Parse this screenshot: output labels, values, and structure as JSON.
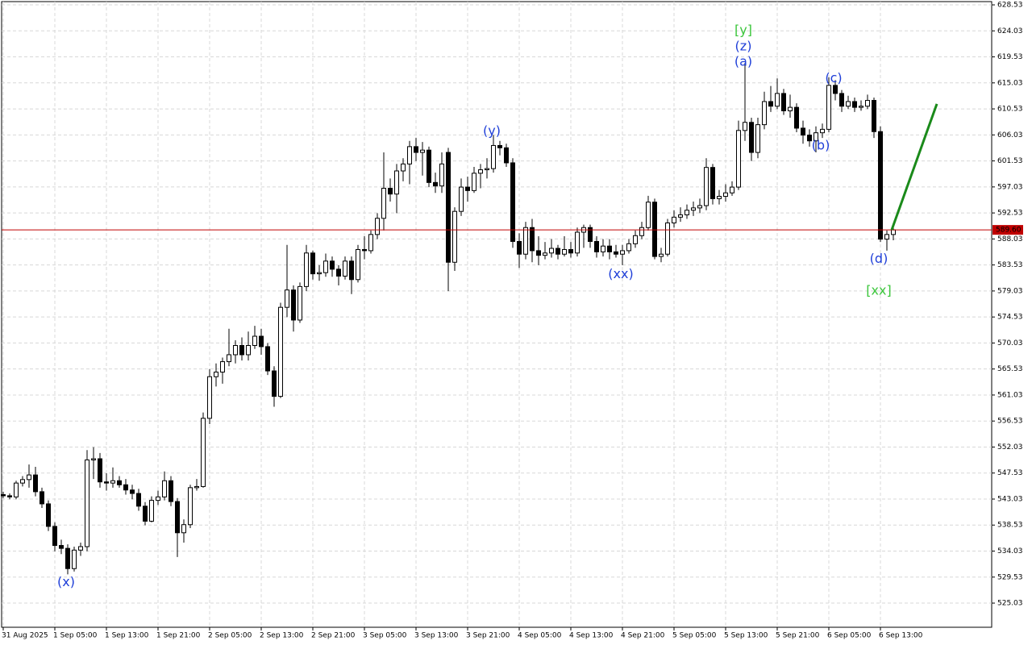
{
  "chart_data": {
    "type": "candlestick",
    "ylim": [
      520.85,
      629.37
    ],
    "yticks": [
      525.03,
      529.53,
      534.03,
      538.53,
      543.03,
      547.53,
      552.03,
      556.53,
      561.03,
      565.53,
      570.03,
      574.53,
      579.03,
      583.53,
      588.03,
      592.53,
      597.03,
      601.53,
      606.03,
      610.53,
      615.03,
      619.53,
      624.03,
      628.53
    ],
    "xlim": [
      -0.5,
      153.25
    ],
    "xticks": [
      {
        "value": 0,
        "label": "31 Aug 2025"
      },
      {
        "value": 8,
        "label": "1 Sep 05:00"
      },
      {
        "value": 16,
        "label": "1 Sep 13:00"
      },
      {
        "value": 24,
        "label": "1 Sep 21:00"
      },
      {
        "value": 32,
        "label": "2 Sep 05:00"
      },
      {
        "value": 40,
        "label": "2 Sep 13:00"
      },
      {
        "value": 48,
        "label": "2 Sep 21:00"
      },
      {
        "value": 56,
        "label": "3 Sep 05:00"
      },
      {
        "value": 64,
        "label": "3 Sep 13:00"
      },
      {
        "value": 72,
        "label": "3 Sep 21:00"
      },
      {
        "value": 80,
        "label": "4 Sep 05:00"
      },
      {
        "value": 88,
        "label": "4 Sep 13:00"
      },
      {
        "value": 96,
        "label": "4 Sep 21:00"
      },
      {
        "value": 104,
        "label": "5 Sep 05:00"
      },
      {
        "value": 112,
        "label": "5 Sep 13:00"
      },
      {
        "value": 120,
        "label": "5 Sep 21:00"
      },
      {
        "value": 128,
        "label": "6 Sep 05:00"
      },
      {
        "value": 136,
        "label": "6 Sep 13:00"
      }
    ],
    "grid": true,
    "up_color": "#ffffff",
    "down_color": "#000000",
    "wick_color": "#000000",
    "open": [
      543.8,
      543.6,
      543.4,
      545.8,
      546.4,
      547.2,
      544.3,
      542.2,
      538.3,
      535.0,
      534.5,
      531.0,
      534.2,
      534.8,
      549.8,
      550.0,
      546.0,
      545.8,
      546.2,
      545.5,
      544.6,
      544.0,
      541.8,
      539.2,
      542.8,
      543.4,
      546.2,
      542.6,
      537.2,
      538.6,
      545.0,
      545.2,
      557.0,
      564.2,
      565.0,
      566.8,
      568.0,
      569.6,
      568.0,
      569.6,
      571.2,
      569.4,
      565.2,
      560.8,
      576.2,
      579.2,
      574.0,
      579.8,
      585.6,
      582.0,
      582.2,
      584.2,
      582.8,
      581.6,
      584.2,
      581.0,
      586.2,
      586.0,
      588.8,
      591.6,
      596.8,
      595.8,
      599.8,
      601.0,
      604.0,
      603.0,
      603.4,
      597.8,
      597.2,
      603.0,
      584.0,
      592.8,
      597.0,
      596.4,
      599.4,
      600.0,
      600.2,
      604.2,
      603.8,
      601.2,
      587.6,
      585.4,
      590.0,
      586.0,
      585.2,
      585.6,
      586.4,
      585.4,
      586.2,
      585.6,
      589.2,
      590.0,
      587.6,
      585.8,
      586.8,
      585.8,
      585.4,
      586.0,
      587.2,
      588.6,
      590.0,
      594.4,
      585.0,
      585.4,
      590.8,
      591.8,
      592.2,
      593.0,
      593.4,
      593.8,
      600.4,
      595.0,
      595.4,
      596.0,
      597.0,
      606.8,
      608.2,
      603.0,
      607.8,
      611.8,
      611.0,
      613.2,
      610.2,
      610.8,
      607.2,
      606.0,
      605.0,
      606.4,
      607.0,
      614.6,
      613.2,
      611.0,
      611.8,
      610.8,
      611.0,
      612.0,
      606.6,
      588.0,
      588.8
    ],
    "high": [
      544.3,
      544.0,
      546.2,
      547.0,
      549.0,
      548.6,
      545.0,
      542.8,
      539.0,
      536.0,
      535.2,
      534.8,
      535.5,
      551.5,
      552.0,
      551.0,
      547.5,
      548.5,
      547.0,
      546.5,
      545.5,
      544.8,
      542.5,
      543.5,
      544.5,
      547.8,
      547.0,
      543.2,
      539.5,
      545.5,
      546.5,
      558.0,
      565.5,
      566.5,
      567.5,
      572.5,
      570.5,
      571.0,
      572.0,
      573.0,
      572.5,
      570.0,
      566.0,
      577.0,
      587.0,
      580.0,
      580.5,
      587.0,
      586.0,
      583.5,
      585.5,
      585.0,
      583.5,
      585.0,
      585.0,
      587.0,
      588.5,
      589.5,
      592.5,
      603.0,
      598.5,
      601.0,
      602.0,
      605.0,
      605.5,
      604.8,
      604.0,
      599.5,
      603.0,
      603.8,
      593.5,
      598.5,
      598.8,
      600.5,
      601.0,
      602.0,
      606.0,
      605.0,
      604.5,
      602.0,
      589.0,
      591.0,
      591.5,
      588.5,
      587.5,
      588.0,
      587.0,
      588.5,
      587.5,
      590.0,
      590.5,
      590.5,
      588.5,
      588.0,
      588.0,
      587.0,
      587.0,
      588.0,
      589.5,
      591.0,
      595.5,
      595.0,
      586.5,
      591.5,
      593.0,
      593.5,
      594.0,
      594.5,
      595.0,
      602.0,
      601.0,
      596.5,
      597.5,
      598.0,
      608.5,
      618.5,
      609.0,
      609.0,
      613.5,
      614.5,
      615.8,
      614.0,
      613.0,
      611.5,
      608.5,
      607.0,
      607.5,
      608.0,
      616.0,
      615.5,
      613.8,
      612.8,
      612.5,
      612.0,
      613.0,
      612.5,
      607.5,
      589.5,
      590.0
    ],
    "low": [
      543.2,
      543.0,
      543.0,
      545.2,
      545.0,
      543.5,
      541.5,
      537.5,
      534.0,
      533.5,
      530.0,
      530.5,
      533.2,
      534.0,
      546.5,
      545.0,
      544.5,
      545.0,
      545.0,
      543.8,
      543.0,
      541.0,
      538.5,
      539.0,
      542.0,
      542.8,
      541.8,
      533.0,
      535.5,
      538.0,
      544.5,
      545.0,
      556.0,
      562.5,
      563.0,
      566.0,
      566.5,
      567.0,
      567.0,
      569.0,
      568.0,
      564.5,
      559.0,
      560.5,
      574.5,
      572.0,
      573.5,
      579.0,
      581.0,
      580.8,
      581.5,
      581.5,
      580.0,
      581.0,
      578.5,
      580.5,
      584.5,
      585.5,
      588.0,
      589.5,
      594.5,
      592.5,
      598.0,
      597.5,
      601.5,
      599.0,
      597.0,
      596.0,
      596.0,
      579.0,
      582.5,
      592.0,
      594.5,
      596.0,
      596.8,
      598.5,
      599.5,
      602.5,
      600.5,
      586.5,
      583.0,
      584.5,
      584.0,
      583.5,
      584.5,
      584.8,
      584.5,
      585.0,
      584.8,
      585.0,
      586.5,
      586.5,
      584.8,
      585.0,
      584.5,
      584.8,
      583.5,
      585.5,
      586.5,
      588.0,
      589.5,
      584.5,
      584.0,
      585.0,
      590.0,
      591.0,
      591.5,
      592.0,
      592.5,
      593.0,
      594.0,
      594.0,
      594.5,
      595.5,
      596.5,
      605.0,
      601.5,
      602.0,
      607.0,
      610.0,
      610.5,
      609.5,
      609.0,
      606.5,
      604.5,
      604.0,
      603.0,
      605.5,
      606.5,
      612.0,
      610.0,
      610.5,
      610.0,
      610.2,
      610.5,
      605.5,
      587.5,
      586.0,
      587.8
    ],
    "close": [
      543.6,
      543.4,
      545.8,
      546.4,
      547.2,
      544.3,
      542.2,
      538.3,
      535.0,
      534.5,
      531.0,
      534.2,
      534.8,
      549.8,
      550.0,
      546.0,
      545.8,
      546.2,
      545.5,
      544.6,
      544.0,
      541.8,
      539.2,
      542.8,
      543.4,
      546.2,
      542.6,
      537.2,
      538.6,
      545.0,
      545.2,
      557.0,
      564.2,
      565.0,
      566.8,
      568.0,
      569.6,
      568.0,
      569.6,
      571.2,
      569.4,
      565.2,
      560.8,
      576.2,
      579.2,
      574.0,
      579.8,
      585.6,
      582.0,
      582.2,
      584.2,
      582.8,
      581.6,
      584.2,
      581.0,
      586.2,
      586.0,
      588.8,
      591.6,
      596.8,
      595.8,
      599.8,
      601.0,
      604.0,
      603.0,
      603.4,
      597.8,
      597.2,
      601.0,
      584.0,
      592.8,
      597.0,
      596.4,
      599.4,
      600.0,
      600.2,
      604.2,
      603.8,
      601.2,
      587.6,
      585.4,
      590.0,
      586.0,
      585.2,
      585.6,
      586.4,
      585.4,
      586.2,
      585.6,
      589.2,
      590.0,
      587.6,
      585.8,
      586.8,
      585.8,
      585.4,
      586.0,
      587.2,
      588.6,
      590.0,
      594.4,
      585.0,
      585.4,
      590.8,
      591.8,
      592.2,
      593.0,
      593.4,
      593.8,
      600.4,
      595.0,
      595.4,
      596.0,
      597.0,
      606.8,
      608.2,
      603.0,
      607.8,
      611.8,
      611.0,
      613.2,
      610.2,
      610.8,
      607.2,
      606.0,
      605.0,
      606.4,
      607.0,
      614.6,
      613.2,
      611.0,
      611.8,
      610.8,
      611.0,
      612.0,
      606.6,
      588.0,
      588.8,
      589.6
    ],
    "current_price": {
      "value": 589.6,
      "label": "589.60"
    },
    "current_price_color": "#c00000",
    "forecast": {
      "color": "#1a8a1a",
      "x": [
        137.75,
        144.75
      ],
      "y": [
        589.6,
        611.4
      ]
    },
    "annotations": [
      {
        "text": "[y]",
        "x": 114.75,
        "y": 624.1,
        "color": "#3cc63c"
      },
      {
        "text": "(z)",
        "x": 114.75,
        "y": 621.3,
        "color": "#1f3fd8"
      },
      {
        "text": "(a)",
        "x": 114.75,
        "y": 618.6,
        "color": "#1f3fd8"
      },
      {
        "text": "(y)",
        "x": 75.75,
        "y": 606.6,
        "color": "#1f3fd8"
      },
      {
        "text": "(x)",
        "x": 9.75,
        "y": 528.6,
        "color": "#1f3fd8"
      },
      {
        "text": "(xx)",
        "x": 95.75,
        "y": 581.9,
        "color": "#1f3fd8"
      },
      {
        "text": "(c)",
        "x": 128.75,
        "y": 615.8,
        "color": "#1f3fd8"
      },
      {
        "text": "(b)",
        "x": 126.75,
        "y": 604.1,
        "color": "#1f3fd8"
      },
      {
        "text": "(d)",
        "x": 135.75,
        "y": 584.5,
        "color": "#1f3fd8"
      },
      {
        "text": "[xx]",
        "x": 135.75,
        "y": 579.0,
        "color": "#3cc63c"
      }
    ]
  }
}
